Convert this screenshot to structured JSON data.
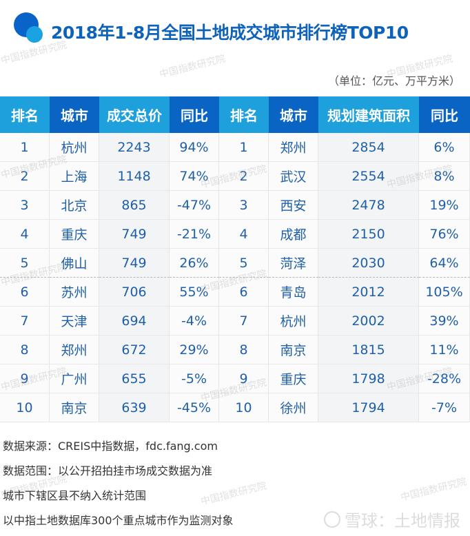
{
  "header": {
    "title": "2018年1-8月全国土地成交城市排行榜TOP10",
    "unit": "（单位：亿元、万平方米）",
    "logo_icon": "overlapping-circles-logo"
  },
  "colors": {
    "header_light": "#1ea0dd",
    "header_dark": "#0a64c4",
    "title": "#0e63b8",
    "cell_text": "#1f5fa8"
  },
  "table": {
    "columns": [
      "排名",
      "城市",
      "成交总价",
      "同比",
      "排名",
      "城市",
      "规划建筑面积",
      "同比"
    ],
    "rows": [
      [
        "1",
        "杭州",
        "2243",
        "94%",
        "1",
        "郑州",
        "2854",
        "6%"
      ],
      [
        "2",
        "上海",
        "1148",
        "74%",
        "2",
        "武汉",
        "2554",
        "8%"
      ],
      [
        "3",
        "北京",
        "865",
        "-47%",
        "3",
        "西安",
        "2478",
        "19%"
      ],
      [
        "4",
        "重庆",
        "749",
        "-21%",
        "4",
        "成都",
        "2150",
        "76%"
      ],
      [
        "5",
        "佛山",
        "749",
        "26%",
        "5",
        "菏泽",
        "2030",
        "64%"
      ],
      [
        "6",
        "苏州",
        "706",
        "55%",
        "6",
        "青岛",
        "2012",
        "105%"
      ],
      [
        "7",
        "天津",
        "694",
        "-4%",
        "7",
        "杭州",
        "2002",
        "39%"
      ],
      [
        "8",
        "郑州",
        "672",
        "29%",
        "8",
        "南京",
        "1815",
        "11%"
      ],
      [
        "9",
        "广州",
        "655",
        "-5%",
        "9",
        "重庆",
        "1798",
        "-28%"
      ],
      [
        "10",
        "南京",
        "639",
        "-45%",
        "10",
        "徐州",
        "1794",
        "-7%"
      ]
    ]
  },
  "notes": [
    "数据来源：CREIS中指数据，fdc.fang.com",
    "数据范围：以公开招拍挂市场成交数据为准",
    "城市下辖区县不纳入统计范围",
    "以中指土地数据库300个重点城市作为监测对象"
  ],
  "watermark": "中国指数研究院",
  "brand": "雪球：土地情报",
  "chart_data": {
    "type": "table",
    "title": "2018年1-8月全国土地成交城市排行榜TOP10",
    "subtitle": "（单位：亿元、万平方米）",
    "tables": [
      {
        "name": "成交总价 (亿元)",
        "columns": [
          "排名",
          "城市",
          "成交总价",
          "同比"
        ],
        "categories": [
          "杭州",
          "上海",
          "北京",
          "重庆",
          "佛山",
          "苏州",
          "天津",
          "郑州",
          "广州",
          "南京"
        ],
        "values": [
          2243,
          1148,
          865,
          749,
          749,
          706,
          694,
          672,
          655,
          639
        ],
        "yoy_pct": [
          94,
          74,
          -47,
          -21,
          26,
          55,
          -4,
          29,
          -5,
          -45
        ]
      },
      {
        "name": "规划建筑面积 (万平方米)",
        "columns": [
          "排名",
          "城市",
          "规划建筑面积",
          "同比"
        ],
        "categories": [
          "郑州",
          "武汉",
          "西安",
          "成都",
          "菏泽",
          "青岛",
          "杭州",
          "南京",
          "重庆",
          "徐州"
        ],
        "values": [
          2854,
          2554,
          2478,
          2150,
          2030,
          2012,
          2002,
          1815,
          1798,
          1794
        ],
        "yoy_pct": [
          6,
          8,
          19,
          76,
          64,
          105,
          39,
          11,
          -28,
          -7
        ]
      }
    ],
    "notes": [
      "数据来源：CREIS中指数据，fdc.fang.com",
      "数据范围：以公开招拍挂市场成交数据为准",
      "城市下辖区县不纳入统计范围",
      "以中指土地数据库300个重点城市作为监测对象"
    ]
  }
}
